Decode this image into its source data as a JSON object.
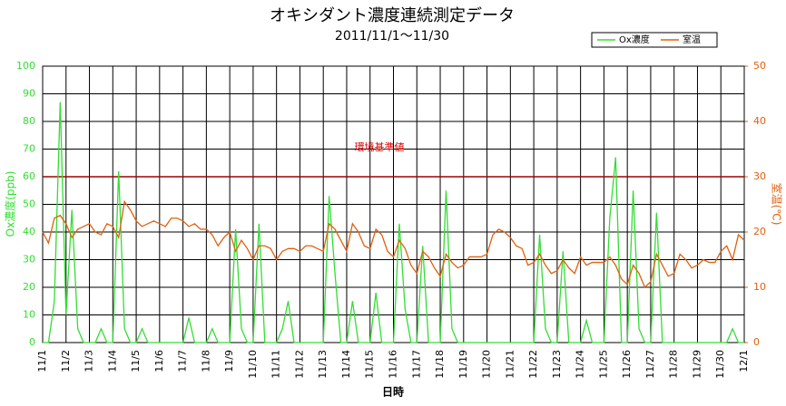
{
  "chart_data": {
    "type": "line",
    "title": "オキシダント濃度連続測定データ",
    "subtitle": "2011/11/1～11/30",
    "xlabel": "日時",
    "ylabel": "Ox濃度(ppb)",
    "y2label": "室温(℃)",
    "x": [
      0,
      0.25,
      0.5,
      0.75,
      1,
      1.25,
      1.5,
      1.75,
      2,
      2.25,
      2.5,
      2.75,
      3,
      3.25,
      3.5,
      3.75,
      4,
      4.25,
      4.5,
      4.75,
      5,
      5.25,
      5.5,
      5.75,
      6,
      6.25,
      6.5,
      6.75,
      7,
      7.25,
      7.5,
      7.75,
      8,
      8.25,
      8.5,
      8.75,
      9,
      9.25,
      9.5,
      9.75,
      10,
      10.25,
      10.5,
      10.75,
      11,
      11.25,
      11.5,
      11.75,
      12,
      12.25,
      12.5,
      12.75,
      13,
      13.25,
      13.5,
      13.75,
      14,
      14.25,
      14.5,
      14.75,
      15,
      15.25,
      15.5,
      15.75,
      16,
      16.25,
      16.5,
      16.75,
      17,
      17.25,
      17.5,
      17.75,
      18,
      18.25,
      18.5,
      18.75,
      19,
      19.25,
      19.5,
      19.75,
      20,
      20.25,
      20.5,
      20.75,
      21,
      21.25,
      21.5,
      21.75,
      22,
      22.25,
      22.5,
      22.75,
      23,
      23.25,
      23.5,
      23.75,
      24,
      24.25,
      24.5,
      24.75,
      25,
      25.25,
      25.5,
      25.75,
      26,
      26.25,
      26.5,
      26.75,
      27,
      27.25,
      27.5,
      27.75,
      28,
      28.25,
      28.5,
      28.75,
      29,
      29.25,
      29.5,
      29.75,
      30
    ],
    "series": [
      {
        "name": "Ox濃度",
        "color": "#33dd33",
        "axis": "y",
        "values": [
          0,
          0,
          15,
          87,
          10,
          48,
          5,
          0,
          0,
          0,
          5,
          0,
          0,
          62,
          5,
          0,
          0,
          5,
          0,
          0,
          0,
          0,
          0,
          0,
          0,
          9,
          0,
          0,
          0,
          5,
          0,
          0,
          0,
          41,
          5,
          0,
          0,
          43,
          0,
          0,
          0,
          5,
          15,
          0,
          0,
          0,
          0,
          0,
          0,
          53,
          25,
          0,
          0,
          15,
          0,
          0,
          0,
          18,
          0,
          0,
          0,
          43,
          12,
          0,
          0,
          35,
          0,
          0,
          0,
          55,
          5,
          0,
          0,
          0,
          0,
          0,
          0,
          0,
          0,
          0,
          0,
          0,
          0,
          0,
          0,
          39,
          5,
          0,
          0,
          33,
          0,
          0,
          0,
          8,
          0,
          0,
          0,
          45,
          67,
          0,
          0,
          55,
          5,
          0,
          0,
          47,
          0,
          0,
          0,
          0,
          0,
          0,
          0,
          0,
          0,
          0,
          0,
          0,
          5,
          0,
          0
        ]
      },
      {
        "name": "室温",
        "color": "#e06010",
        "axis": "y2",
        "values": [
          20,
          18,
          22.5,
          23,
          21.5,
          19,
          20.5,
          21,
          21.5,
          20,
          19.5,
          21.5,
          21,
          19,
          25.5,
          24,
          22,
          21,
          21.5,
          22,
          21.5,
          21,
          22.5,
          22.5,
          22,
          21,
          21.5,
          20.5,
          20.5,
          19.5,
          17.5,
          19,
          20,
          16.5,
          18.5,
          17,
          15,
          17.5,
          17.5,
          17,
          15,
          16.5,
          17,
          17,
          16.5,
          17.5,
          17.5,
          17,
          16.5,
          21.5,
          20.5,
          18.5,
          16.5,
          21.5,
          20,
          17.5,
          17,
          20.5,
          19.5,
          16.5,
          15.5,
          18.5,
          17,
          14,
          12.5,
          16.5,
          15.5,
          13.5,
          12,
          16,
          14.5,
          13.5,
          14,
          15.5,
          15.5,
          15.5,
          16,
          19.5,
          20.5,
          20,
          19,
          17.5,
          17,
          14,
          14.5,
          16,
          14,
          12.5,
          13,
          15,
          13.5,
          12.5,
          15.5,
          14,
          14.5,
          14.5,
          14.5,
          15.5,
          14,
          11.5,
          10.5,
          14,
          12.5,
          10,
          11,
          16,
          14,
          12,
          12.5,
          16,
          15,
          13.5,
          14,
          15,
          14.5,
          14.5,
          16.5,
          17.5,
          15,
          19.5,
          18.5
        ]
      }
    ],
    "xlim": [
      0,
      30
    ],
    "xticks": [
      {
        "value": 0,
        "label": "11/1"
      },
      {
        "value": 1,
        "label": "11/2"
      },
      {
        "value": 2,
        "label": "11/3"
      },
      {
        "value": 3,
        "label": "11/4"
      },
      {
        "value": 4,
        "label": "11/5"
      },
      {
        "value": 5,
        "label": "11/6"
      },
      {
        "value": 6,
        "label": "11/7"
      },
      {
        "value": 7,
        "label": "11/8"
      },
      {
        "value": 8,
        "label": "11/9"
      },
      {
        "value": 9,
        "label": "11/10"
      },
      {
        "value": 10,
        "label": "11/11"
      },
      {
        "value": 11,
        "label": "11/12"
      },
      {
        "value": 12,
        "label": "11/13"
      },
      {
        "value": 13,
        "label": "11/14"
      },
      {
        "value": 14,
        "label": "11/15"
      },
      {
        "value": 15,
        "label": "11/16"
      },
      {
        "value": 16,
        "label": "11/17"
      },
      {
        "value": 17,
        "label": "11/18"
      },
      {
        "value": 18,
        "label": "11/19"
      },
      {
        "value": 19,
        "label": "11/20"
      },
      {
        "value": 20,
        "label": "11/21"
      },
      {
        "value": 21,
        "label": "11/22"
      },
      {
        "value": 22,
        "label": "11/23"
      },
      {
        "value": 23,
        "label": "11/24"
      },
      {
        "value": 24,
        "label": "11/25"
      },
      {
        "value": 25,
        "label": "11/26"
      },
      {
        "value": 26,
        "label": "11/27"
      },
      {
        "value": 27,
        "label": "11/28"
      },
      {
        "value": 28,
        "label": "11/29"
      },
      {
        "value": 29,
        "label": "11/30"
      },
      {
        "value": 30,
        "label": "12/1"
      }
    ],
    "ylim": [
      0,
      100
    ],
    "yticks": [
      0,
      10,
      20,
      30,
      40,
      50,
      60,
      70,
      80,
      90,
      100
    ],
    "y2lim": [
      0,
      50
    ],
    "y2ticks": [
      0,
      10,
      20,
      30,
      40,
      50
    ],
    "grid": true,
    "legend": "top-right",
    "reference_line": {
      "label": "環境基準値",
      "value": 60,
      "color": "#a00000"
    }
  }
}
